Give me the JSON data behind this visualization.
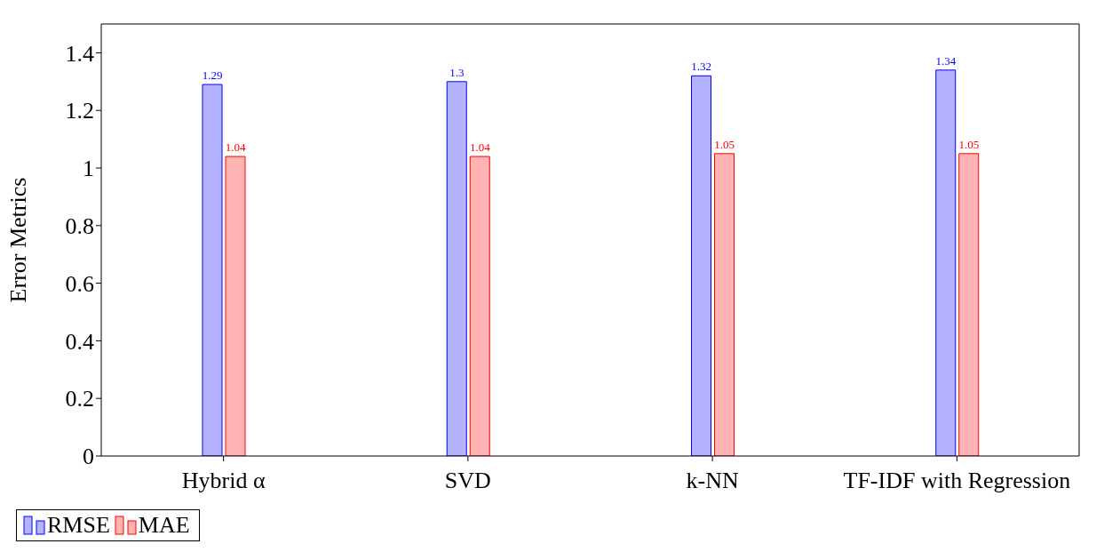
{
  "chart_data": {
    "type": "bar",
    "ylabel": "Error Metrics",
    "categories": [
      "Hybrid α",
      "SVD",
      "k-NN",
      "TF-IDF with Regression"
    ],
    "series": [
      {
        "name": "RMSE",
        "color": "#b3b3ff",
        "values": [
          1.29,
          1.3,
          1.32,
          1.34
        ]
      },
      {
        "name": "MAE",
        "color": "#ffb3b3",
        "values": [
          1.04,
          1.04,
          1.05,
          1.05
        ]
      }
    ],
    "ylim": [
      0,
      1.5
    ],
    "yticks": [
      0,
      0.2,
      0.4,
      0.6,
      0.8,
      1,
      1.2,
      1.4
    ],
    "data_labels": true,
    "legend": "bottom",
    "grid": false
  }
}
